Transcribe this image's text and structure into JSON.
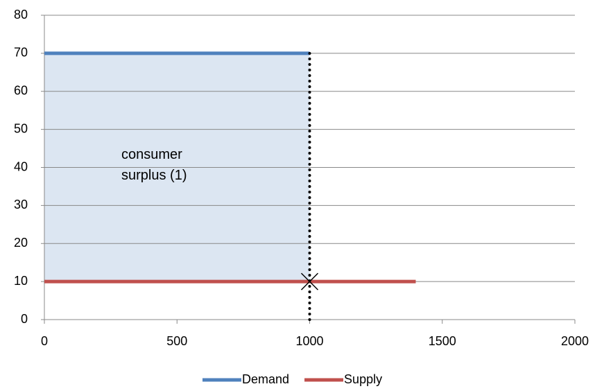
{
  "chart_data": {
    "type": "line",
    "annotation": "consumer surplus (1)",
    "series": [
      {
        "name": "Demand",
        "color": "#4f81bd",
        "x": [
          0,
          1000
        ],
        "values": [
          70,
          70
        ]
      },
      {
        "name": "Supply",
        "color": "#c0504d",
        "x": [
          0,
          1400
        ],
        "values": [
          10,
          10
        ]
      }
    ],
    "shaded_region": {
      "x": [
        0,
        1000
      ],
      "y": [
        10,
        70
      ],
      "color": "#dce6f2"
    },
    "vline": {
      "x": 1000,
      "y": [
        0,
        70
      ],
      "color": "#000000"
    },
    "marker": {
      "x": 1000,
      "y": 10,
      "color": "#000000"
    },
    "xlim": [
      0,
      2000
    ],
    "xticks": [
      0,
      500,
      1000,
      1500,
      2000
    ],
    "ylim": [
      0,
      80
    ],
    "yticks": [
      0,
      10,
      20,
      30,
      40,
      50,
      60,
      70,
      80
    ],
    "grid": true,
    "legend": "bottom"
  }
}
